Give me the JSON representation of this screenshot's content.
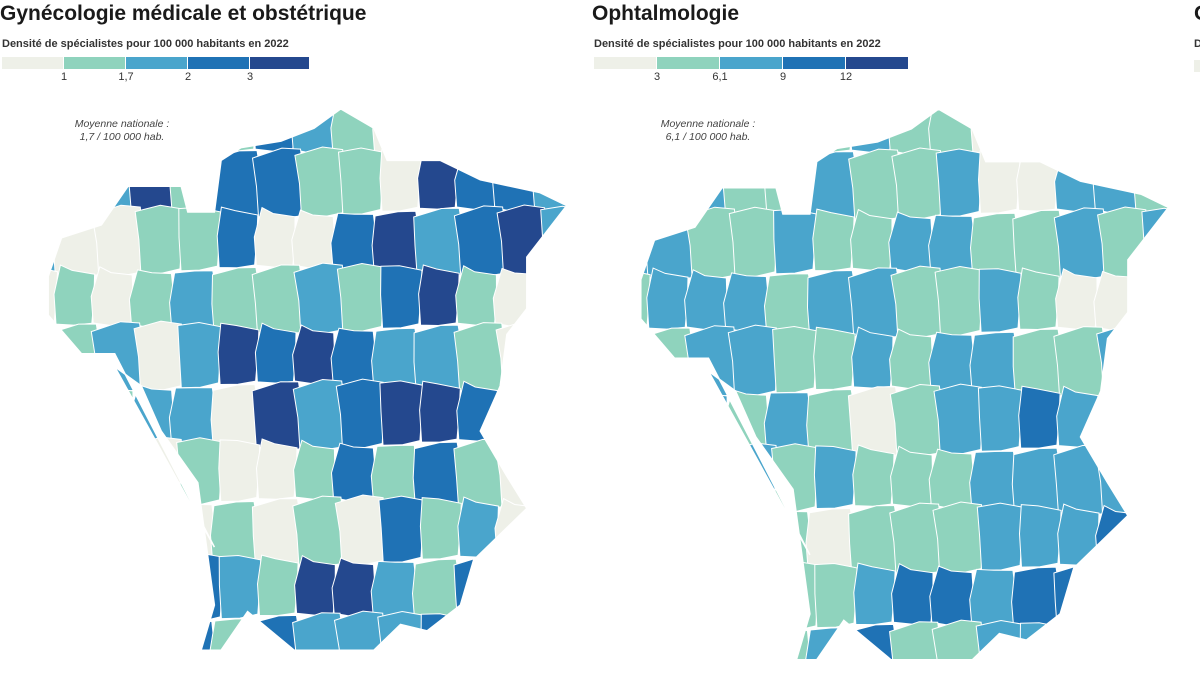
{
  "palette": [
    "#eef0e8",
    "#8fd3bd",
    "#4aa5cc",
    "#1f72b5",
    "#24488e"
  ],
  "panels": [
    {
      "title": "Gynécologie médicale et obstétrique",
      "legend_title": "Densité de spécialistes pour 100 000 habitants en 2022",
      "legend_ticks": [
        "1",
        "1,7",
        "2",
        "3"
      ],
      "avg_line1": "Moyenne nationale :",
      "avg_line2": "1,7 / 100 000 hab.",
      "classes": [
        [
          1,
          3,
          1,
          0,
          0,
          1,
          3,
          2,
          1,
          0,
          2,
          1,
          1,
          1
        ],
        [
          0,
          1,
          2,
          4,
          1,
          3,
          3,
          1,
          1,
          0,
          4,
          3,
          3,
          2
        ],
        [
          2,
          0,
          0,
          1,
          1,
          3,
          0,
          0,
          3,
          4,
          2,
          3,
          4,
          2
        ],
        [
          0,
          1,
          0,
          1,
          2,
          1,
          1,
          2,
          1,
          3,
          4,
          1,
          0,
          0
        ],
        [
          1,
          1,
          2,
          0,
          2,
          4,
          3,
          4,
          3,
          2,
          2,
          1,
          0,
          0
        ],
        [
          1,
          2,
          1,
          2,
          2,
          0,
          4,
          2,
          3,
          4,
          4,
          3,
          4,
          1
        ],
        [
          2,
          3,
          0,
          0,
          1,
          0,
          0,
          1,
          3,
          1,
          3,
          1,
          0,
          1
        ],
        [
          1,
          3,
          2,
          1,
          0,
          1,
          0,
          1,
          0,
          3,
          1,
          2,
          0,
          0
        ],
        [
          3,
          2,
          2,
          0,
          3,
          2,
          1,
          4,
          4,
          2,
          1,
          3,
          0,
          0
        ],
        [
          2,
          2,
          1,
          1,
          3,
          1,
          3,
          2,
          2,
          2,
          3,
          3,
          2,
          1
        ]
      ]
    },
    {
      "title": "Ophtalmologie",
      "legend_title": "Densité de spécialistes pour 100 000 habitants en 2022",
      "legend_ticks": [
        "3",
        "6,1",
        "9",
        "12"
      ],
      "avg_line1": "Moyenne nationale :",
      "avg_line2": "6,1 / 100 000 hab.",
      "classes": [
        [
          2,
          1,
          1,
          1,
          2,
          1,
          2,
          1,
          1,
          0,
          1,
          1,
          2,
          1
        ],
        [
          1,
          2,
          2,
          1,
          1,
          2,
          1,
          1,
          2,
          0,
          0,
          2,
          2,
          1
        ],
        [
          2,
          2,
          1,
          1,
          2,
          1,
          1,
          2,
          2,
          1,
          1,
          2,
          1,
          2
        ],
        [
          1,
          2,
          2,
          2,
          1,
          2,
          2,
          1,
          1,
          2,
          1,
          0,
          0,
          2
        ],
        [
          1,
          1,
          2,
          2,
          1,
          1,
          2,
          1,
          2,
          2,
          1,
          1,
          2,
          1
        ],
        [
          1,
          2,
          2,
          1,
          2,
          1,
          0,
          1,
          2,
          2,
          3,
          2,
          2,
          2
        ],
        [
          3,
          3,
          1,
          2,
          1,
          2,
          1,
          1,
          1,
          2,
          2,
          2,
          2,
          2
        ],
        [
          1,
          2,
          1,
          1,
          1,
          0,
          1,
          1,
          1,
          2,
          2,
          2,
          3,
          2
        ],
        [
          3,
          2,
          1,
          2,
          1,
          1,
          2,
          3,
          3,
          2,
          3,
          3,
          2,
          3
        ],
        [
          1,
          3,
          2,
          2,
          1,
          2,
          3,
          1,
          1,
          2,
          2,
          3,
          2,
          1
        ]
      ]
    }
  ],
  "cut_panel": {
    "title": "O",
    "legend_fragment": "D"
  }
}
